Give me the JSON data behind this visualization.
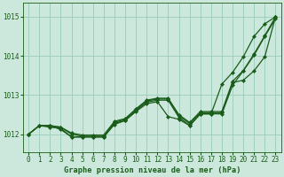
{
  "title": "Graphe pression niveau de la mer (hPa)",
  "xlabel_hours": [
    0,
    1,
    2,
    3,
    4,
    5,
    6,
    7,
    8,
    9,
    10,
    11,
    12,
    13,
    14,
    15,
    16,
    17,
    18,
    19,
    20,
    21,
    22,
    23
  ],
  "yticks": [
    1012,
    1013,
    1014,
    1015
  ],
  "ylim": [
    1011.55,
    1015.35
  ],
  "xlim": [
    -0.5,
    23.5
  ],
  "background_color": "#cce8dc",
  "grid_color": "#99ccbb",
  "line_color": "#1a5c1a",
  "series": [
    [
      1012.0,
      1012.22,
      1012.22,
      1012.12,
      1011.93,
      1011.93,
      1011.93,
      1011.93,
      1012.28,
      1012.35,
      1012.6,
      1012.82,
      1012.87,
      1012.87,
      1012.43,
      1012.22,
      1012.52,
      1012.52,
      1012.52,
      1013.25,
      1013.62,
      1014.02,
      1014.5,
      1014.95
    ],
    [
      1012.0,
      1012.22,
      1012.18,
      1012.15,
      1011.93,
      1011.93,
      1011.93,
      1011.93,
      1012.25,
      1012.35,
      1012.58,
      1012.78,
      1012.83,
      1012.45,
      1012.38,
      1012.22,
      1012.52,
      1012.52,
      1013.28,
      1013.58,
      1013.98,
      1014.5,
      1014.82,
      1015.0
    ],
    [
      1012.0,
      1012.22,
      1012.22,
      1012.18,
      1012.0,
      1011.95,
      1011.95,
      1011.95,
      1012.3,
      1012.38,
      1012.62,
      1012.85,
      1012.9,
      1012.9,
      1012.47,
      1012.27,
      1012.55,
      1012.55,
      1012.55,
      1013.32,
      1013.38,
      1013.62,
      1013.98,
      1015.0
    ],
    [
      1012.0,
      1012.22,
      1012.22,
      1012.18,
      1012.03,
      1011.98,
      1011.98,
      1011.98,
      1012.33,
      1012.4,
      1012.65,
      1012.87,
      1012.92,
      1012.92,
      1012.5,
      1012.3,
      1012.58,
      1012.58,
      1012.58,
      1013.35,
      1013.63,
      1014.05,
      1014.52,
      1015.0
    ]
  ],
  "marker": "D",
  "markersize": 2.0,
  "linewidth": 0.9,
  "tick_fontsize": 5.5,
  "label_fontsize": 6.0,
  "title_fontsize": 6.2
}
